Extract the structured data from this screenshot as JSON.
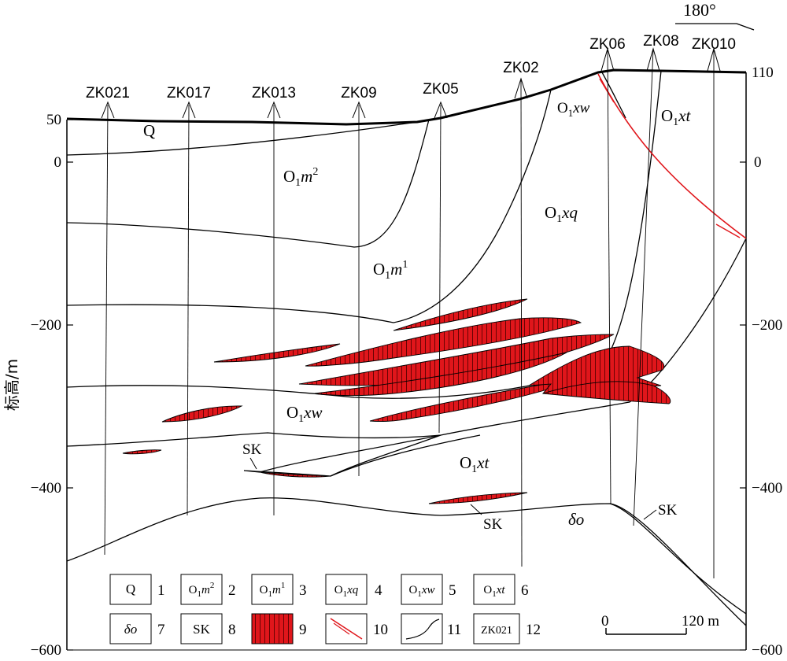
{
  "orientation": "180°",
  "axis": {
    "ylabel": "标高/m",
    "left_ticks": [
      "50",
      "0",
      "−200",
      "−400",
      "−600"
    ],
    "right_ticks": [
      "110",
      "0",
      "−200",
      "−400",
      "−600"
    ]
  },
  "drillholes": [
    "ZK021",
    "ZK017",
    "ZK013",
    "ZK09",
    "ZK05",
    "ZK02",
    "ZK06",
    "ZK08",
    "ZK010"
  ],
  "units": {
    "q": "Q",
    "o1m2": {
      "base": "O",
      "sub": "1",
      "main": "m",
      "sup": "2"
    },
    "o1m1": {
      "base": "O",
      "sub": "1",
      "main": "m",
      "sup": "1"
    },
    "o1xq": {
      "base": "O",
      "sub": "1",
      "main": "xq"
    },
    "o1xw": {
      "base": "O",
      "sub": "1",
      "main": "xw"
    },
    "o1xt": {
      "base": "O",
      "sub": "1",
      "main": "xt"
    },
    "delta_o": "δο",
    "sk": "SK"
  },
  "legend": [
    {
      "num": "1",
      "text": "Q"
    },
    {
      "num": "2",
      "text": "O1m2"
    },
    {
      "num": "3",
      "text": "O1m1"
    },
    {
      "num": "4",
      "text": "O1xq"
    },
    {
      "num": "5",
      "text": "O1xw"
    },
    {
      "num": "6",
      "text": "O1xt"
    },
    {
      "num": "7",
      "text": "δο"
    },
    {
      "num": "8",
      "text": "SK"
    },
    {
      "num": "9",
      "text": ""
    },
    {
      "num": "10",
      "text": ""
    },
    {
      "num": "11",
      "text": ""
    },
    {
      "num": "12",
      "text": "ZK021"
    }
  ],
  "scale": {
    "start": "0",
    "end": "120 m"
  },
  "colors": {
    "orebody": "#e0161b",
    "fault": "#e0161b",
    "line": "#000000"
  }
}
